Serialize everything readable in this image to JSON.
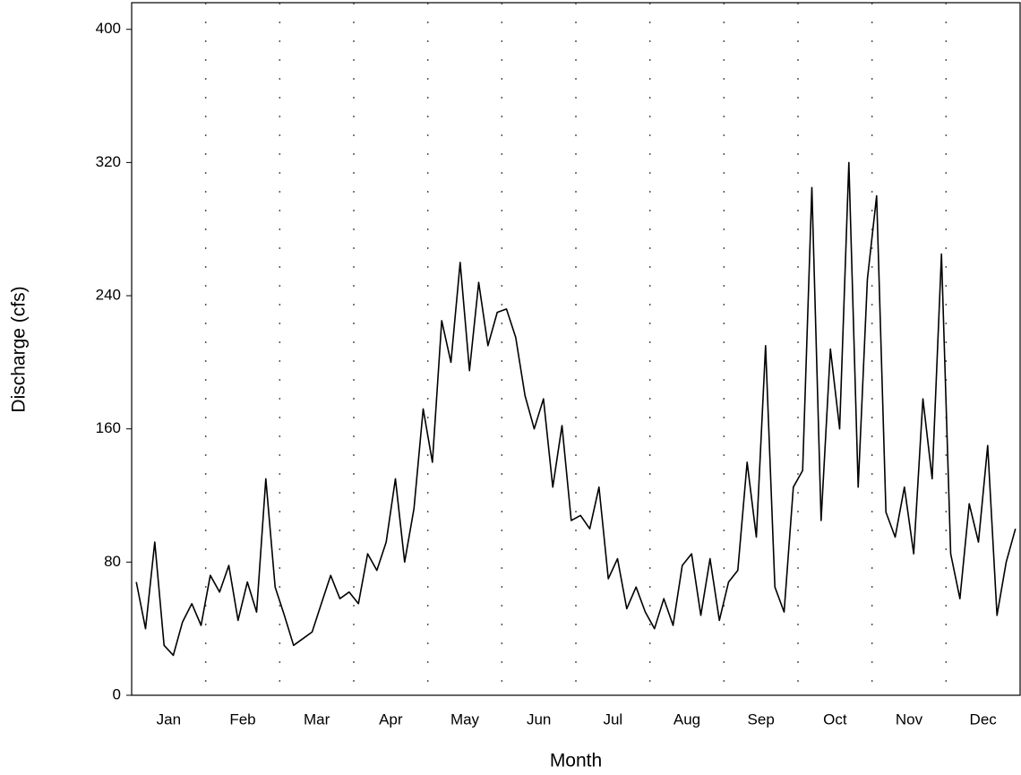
{
  "chart_data": {
    "type": "line",
    "x_label": "Month",
    "y_label": "Discharge (cfs)",
    "categories": [
      null,
      null,
      null,
      null,
      "Jan",
      null,
      null,
      null,
      null,
      null,
      null,
      null,
      "Feb",
      null,
      null,
      null,
      null,
      null,
      null,
      null,
      "Mar",
      null,
      null,
      null,
      null,
      null,
      null,
      null,
      "Apr",
      null,
      null,
      null,
      null,
      null,
      null,
      null,
      "May",
      null,
      null,
      null,
      null,
      null,
      null,
      null,
      "Jun",
      null,
      null,
      null,
      null,
      null,
      null,
      null,
      "Jul",
      null,
      null,
      null,
      null,
      null,
      null,
      null,
      "Aug",
      null,
      null,
      null,
      null,
      null,
      null,
      null,
      "Sep",
      null,
      null,
      null,
      null,
      null,
      null,
      null,
      "Oct",
      null,
      null,
      null,
      null,
      null,
      null,
      null,
      "Nov",
      null,
      null,
      null,
      null,
      null,
      null,
      null,
      "Dec",
      null,
      null,
      null
    ],
    "values": [
      68,
      40,
      92,
      30,
      24,
      44,
      55,
      42,
      72,
      62,
      78,
      45,
      68,
      50,
      130,
      65,
      48,
      30,
      34,
      38,
      55,
      72,
      58,
      62,
      55,
      85,
      75,
      92,
      130,
      80,
      112,
      172,
      140,
      225,
      200,
      260,
      195,
      248,
      210,
      230,
      232,
      215,
      180,
      160,
      178,
      125,
      162,
      105,
      108,
      100,
      125,
      70,
      82,
      52,
      65,
      50,
      40,
      58,
      42,
      78,
      85,
      48,
      82,
      45,
      68,
      75,
      140,
      95,
      210,
      65,
      50,
      125,
      135,
      305,
      105,
      208,
      160,
      320,
      125,
      250,
      300,
      110,
      95,
      125,
      85,
      178,
      130,
      265,
      85,
      58,
      115,
      92,
      150,
      48,
      80,
      100
    ],
    "color": "#000000",
    "ylim": [
      0,
      416
    ],
    "yticks": [
      0,
      80,
      160,
      240,
      320,
      400
    ],
    "grid": true
  }
}
